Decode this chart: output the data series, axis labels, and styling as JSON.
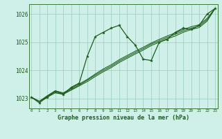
{
  "xlabel": "Graphe pression niveau de la mer (hPa)",
  "bg_color": "#cff0e8",
  "grid_color": "#99ccbb",
  "line_color": "#1a5c1a",
  "x": [
    0,
    1,
    2,
    3,
    4,
    5,
    6,
    7,
    8,
    9,
    10,
    11,
    12,
    13,
    14,
    15,
    16,
    17,
    18,
    19,
    20,
    21,
    22,
    23
  ],
  "line_main": [
    1023.05,
    1022.85,
    1023.05,
    1023.25,
    1023.15,
    1023.4,
    1023.55,
    1024.5,
    1025.2,
    1025.35,
    1025.5,
    1025.6,
    1025.2,
    1024.9,
    1024.4,
    1024.35,
    1025.0,
    1025.1,
    1025.35,
    1025.5,
    1025.45,
    1025.6,
    1026.0,
    1026.2
  ],
  "line_smooth1": [
    1023.05,
    1022.9,
    1023.05,
    1023.2,
    1023.15,
    1023.3,
    1023.45,
    1023.6,
    1023.78,
    1023.95,
    1024.1,
    1024.28,
    1024.43,
    1024.58,
    1024.72,
    1024.88,
    1025.0,
    1025.12,
    1025.22,
    1025.35,
    1025.45,
    1025.52,
    1025.75,
    1026.2
  ],
  "line_smooth2": [
    1023.05,
    1022.9,
    1023.08,
    1023.25,
    1023.18,
    1023.33,
    1023.48,
    1023.65,
    1023.83,
    1024.0,
    1024.15,
    1024.33,
    1024.48,
    1024.63,
    1024.77,
    1024.93,
    1025.05,
    1025.17,
    1025.28,
    1025.4,
    1025.5,
    1025.57,
    1025.8,
    1026.2
  ],
  "line_smooth3": [
    1023.05,
    1022.9,
    1023.1,
    1023.28,
    1023.2,
    1023.37,
    1023.52,
    1023.68,
    1023.87,
    1024.05,
    1024.2,
    1024.38,
    1024.53,
    1024.68,
    1024.82,
    1024.97,
    1025.1,
    1025.22,
    1025.33,
    1025.45,
    1025.55,
    1025.62,
    1025.85,
    1026.2
  ],
  "ylim": [
    1022.65,
    1026.35
  ],
  "xlim": [
    -0.3,
    23.3
  ],
  "yticks": [
    1023,
    1024,
    1025,
    1026
  ],
  "xticks": [
    0,
    1,
    2,
    3,
    4,
    5,
    6,
    7,
    8,
    9,
    10,
    11,
    12,
    13,
    14,
    15,
    16,
    17,
    18,
    19,
    20,
    21,
    22,
    23
  ]
}
